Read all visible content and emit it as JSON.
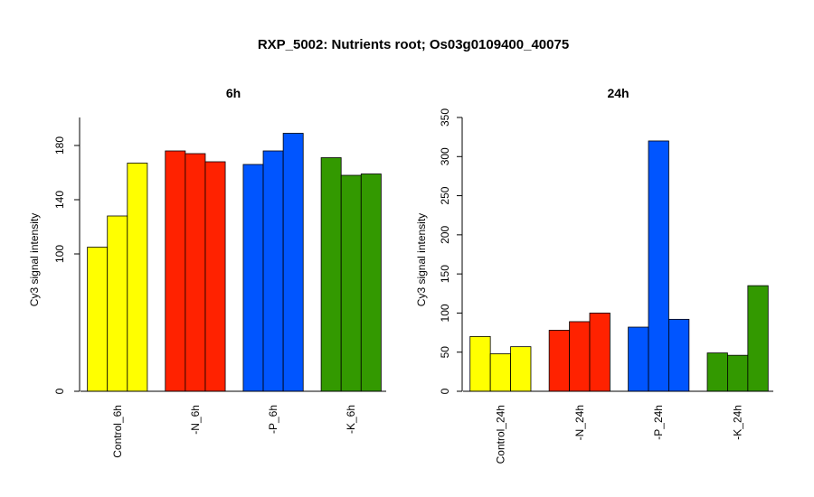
{
  "title": "RXP_5002: Nutrients root; Os03g0109400_40075",
  "chart_data": [
    {
      "type": "bar",
      "title": "6h",
      "ylabel": "Cy3 signal intensity",
      "ylim": [
        0,
        200
      ],
      "yticks": [
        0,
        100,
        140,
        180
      ],
      "y_break": {
        "from": 0,
        "to": 80
      },
      "categories": [
        "Control_6h",
        "-N_6h",
        "-P_6h",
        "-K_6h"
      ],
      "colors": [
        "#FFFF00",
        "#FF2200",
        "#0055FF",
        "#339900"
      ],
      "values": [
        [
          105,
          128,
          167
        ],
        [
          176,
          174,
          168
        ],
        [
          166,
          176,
          189
        ],
        [
          171,
          158,
          159
        ]
      ]
    },
    {
      "type": "bar",
      "title": "24h",
      "ylabel": "Cy3 signal intensity",
      "ylim": [
        0,
        350
      ],
      "yticks": [
        0,
        50,
        100,
        150,
        200,
        250,
        300,
        350
      ],
      "categories": [
        "Control_24h",
        "-N_24h",
        "-P_24h",
        "-K_24h"
      ],
      "colors": [
        "#FFFF00",
        "#FF2200",
        "#0055FF",
        "#339900"
      ],
      "values": [
        [
          70,
          48,
          57
        ],
        [
          78,
          89,
          100
        ],
        [
          82,
          320,
          92
        ],
        [
          49,
          46,
          135
        ]
      ]
    }
  ]
}
